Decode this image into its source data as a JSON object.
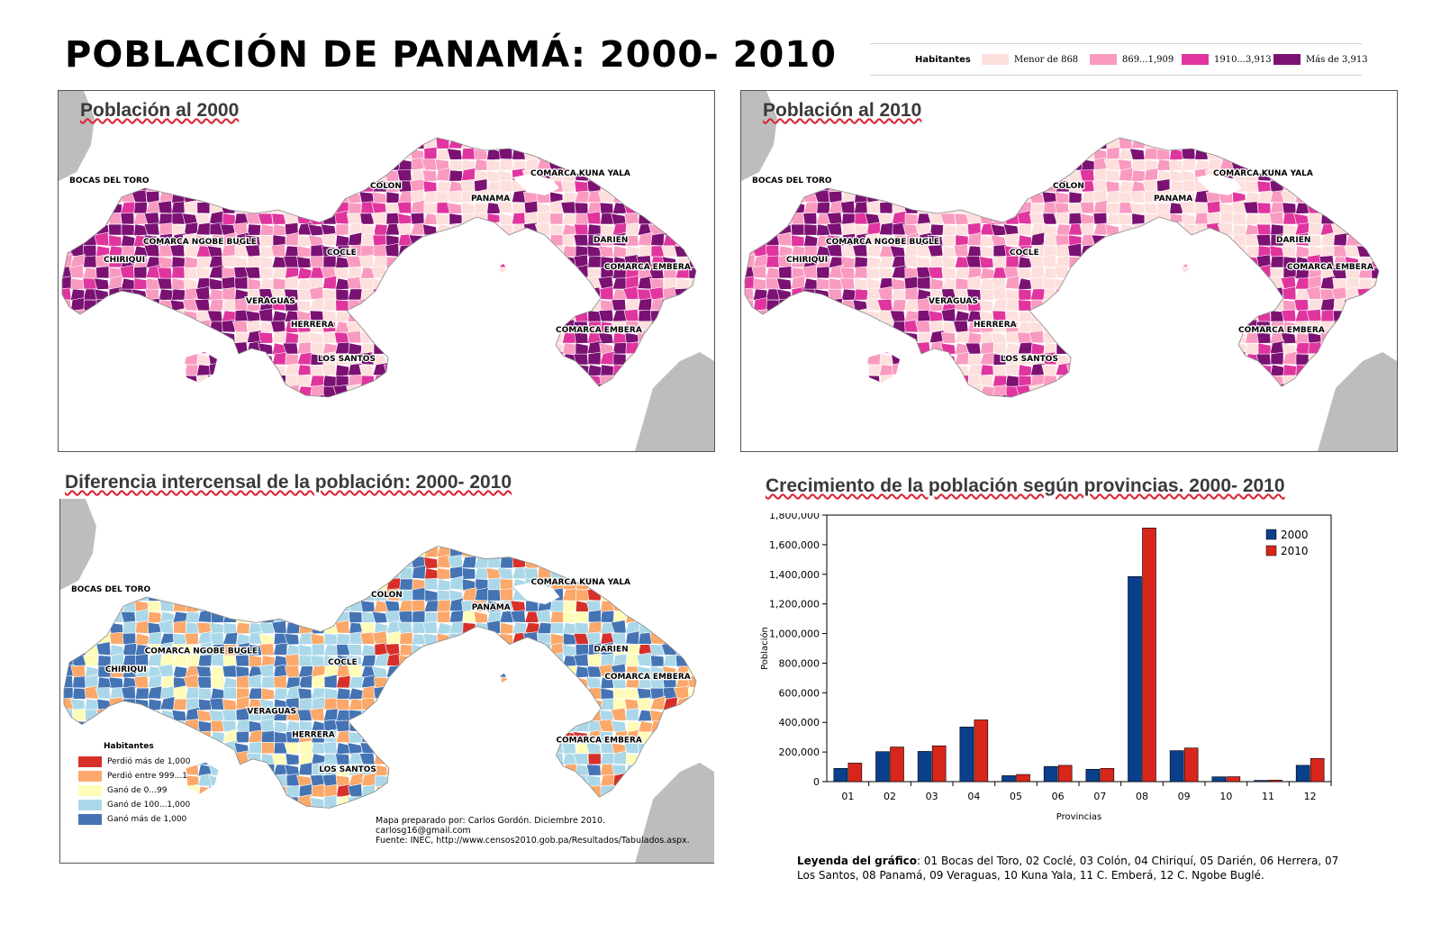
{
  "title": "POBLACIÓN DE PANAMÁ: 2000- 2010",
  "colors": {
    "tier1": "#fde0dd",
    "tier2": "#f99bc1",
    "tier3": "#e0359e",
    "tier4": "#7b1173",
    "lost_more": "#d7302a",
    "lost_between": "#fba86a",
    "gain_small": "#fefcb8",
    "gain_mid": "#abd8e9",
    "gain_more": "#4574b5",
    "neighbor": "#bdbdbd",
    "bar_2000": "#0a3f8c",
    "bar_2010": "#d8261b"
  },
  "top_legend": {
    "title": "Habitantes",
    "items": [
      {
        "label": "Menor de 868",
        "color": "#fde0dd"
      },
      {
        "label": "869...1,909",
        "color": "#f99bc1"
      },
      {
        "label": "1910...3,913",
        "color": "#e0359e"
      },
      {
        "label": "Más de 3,913",
        "color": "#7b1173"
      }
    ]
  },
  "map_labels": {
    "bocas": "BOCAS DEL TORO",
    "colon": "COLON",
    "kuna": "COMARCA KUNA YALA",
    "panama": "PANAMA",
    "ngobe": "COMARCA NGOBE BUGLE",
    "darien": "DARIEN",
    "chiriqui": "CHIRIQUI",
    "cocle": "COCLE",
    "embera1": "COMARCA EMBERA",
    "veraguas": "VERAGUAS",
    "herrera": "HERRERA",
    "embera2": "COMARCA EMBERA",
    "lossantos": "LOS SANTOS"
  },
  "map2000": {
    "title": "Población al 2000"
  },
  "map2010": {
    "title": "Población al 2010"
  },
  "diff_map": {
    "title": "Diferencia intercensal de la población: 2000- 2010",
    "legend_title": "Habitantes",
    "legend": [
      {
        "label": "Perdió más de 1,000",
        "color": "#d7302a"
      },
      {
        "label": "Perdió entre 999...1",
        "color": "#fba86a"
      },
      {
        "label": "Ganó de 0...99",
        "color": "#fefcb8"
      },
      {
        "label": "Ganó de 100...1,000",
        "color": "#abd8e9"
      },
      {
        "label": "Ganó más de 1,000",
        "color": "#4574b5"
      }
    ],
    "credits": [
      "Mapa preparado por: Carlos Gordón. Diciembre 2010.",
      "carlosg16@gmail.com",
      "Fuente: INEC, http://www.censos2010.gob.pa/Resultados/Tabulados.aspx."
    ]
  },
  "chart_section": {
    "title": "Crecimiento de la población según provincias. 2000- 2010",
    "caption_bold": "Leyenda del gráfico",
    "caption_text": ": 01  Bocas del Toro, 02 Coclé, 03 Colón, 04 Chiriquí, 05 Darién, 06 Herrera, 07 Los Santos, 08 Panamá, 09 Veraguas, 10 Kuna Yala, 11 C. Emberá, 12 C. Ngobe Buglé."
  },
  "chart_data": {
    "type": "bar",
    "categories": [
      "01",
      "02",
      "03",
      "04",
      "05",
      "06",
      "07",
      "08",
      "09",
      "10",
      "11",
      "12"
    ],
    "series": [
      {
        "name": "2000",
        "values": [
          89269,
          202461,
          204208,
          368790,
          40284,
          102465,
          83495,
          1385052,
          209076,
          32446,
          8246,
          110080
        ]
      },
      {
        "name": "2010",
        "values": [
          125461,
          233708,
          241928,
          416873,
          48378,
          109955,
          89592,
          1713070,
          226991,
          33109,
          10001,
          156747
        ]
      }
    ],
    "ylabel": "Población",
    "xlabel": "Provincias",
    "ylim": [
      0,
      1800000
    ],
    "yticks": [
      "0",
      "200,000",
      "400,000",
      "600,000",
      "800,000",
      "1,000,000",
      "1,200,000",
      "1,400,000",
      "1,600,000",
      "1,800,000"
    ],
    "legend_position": "top-right",
    "grid": false
  }
}
